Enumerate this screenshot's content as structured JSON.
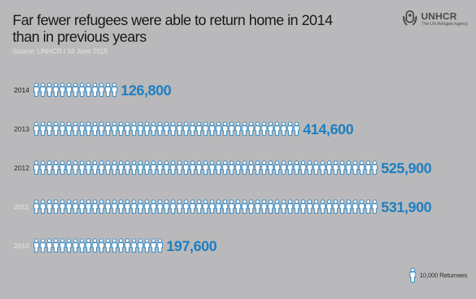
{
  "title": "Far fewer refugees were able to return home in 2014 than in previous years",
  "source": "Source: UNHCR / 18 June 2015",
  "logo": {
    "name": "UNHCR",
    "subtitle": "The UN Refugee Agency"
  },
  "legend": {
    "label": "10,000 Returnees",
    "icon": "person-icon"
  },
  "colors": {
    "icon_fill": "#ffffff",
    "icon_stroke": "#1f7fc1",
    "value_text": "#1f7fc1",
    "background": "#b9b9bb"
  },
  "chart_data": {
    "type": "bar",
    "unit_per_icon": 10000,
    "categories": [
      "2014",
      "2013",
      "2012",
      "2011",
      "2010"
    ],
    "values": [
      126800,
      414600,
      525900,
      531900,
      197600
    ],
    "value_labels": [
      "126,800",
      "414,600",
      "525,900",
      "531,900",
      "197,600"
    ],
    "label_colors": [
      "#1a1a1a",
      "#2e2e2e",
      "#2e2e2e",
      "#e8e8e8",
      "#e8e8e8"
    ]
  }
}
